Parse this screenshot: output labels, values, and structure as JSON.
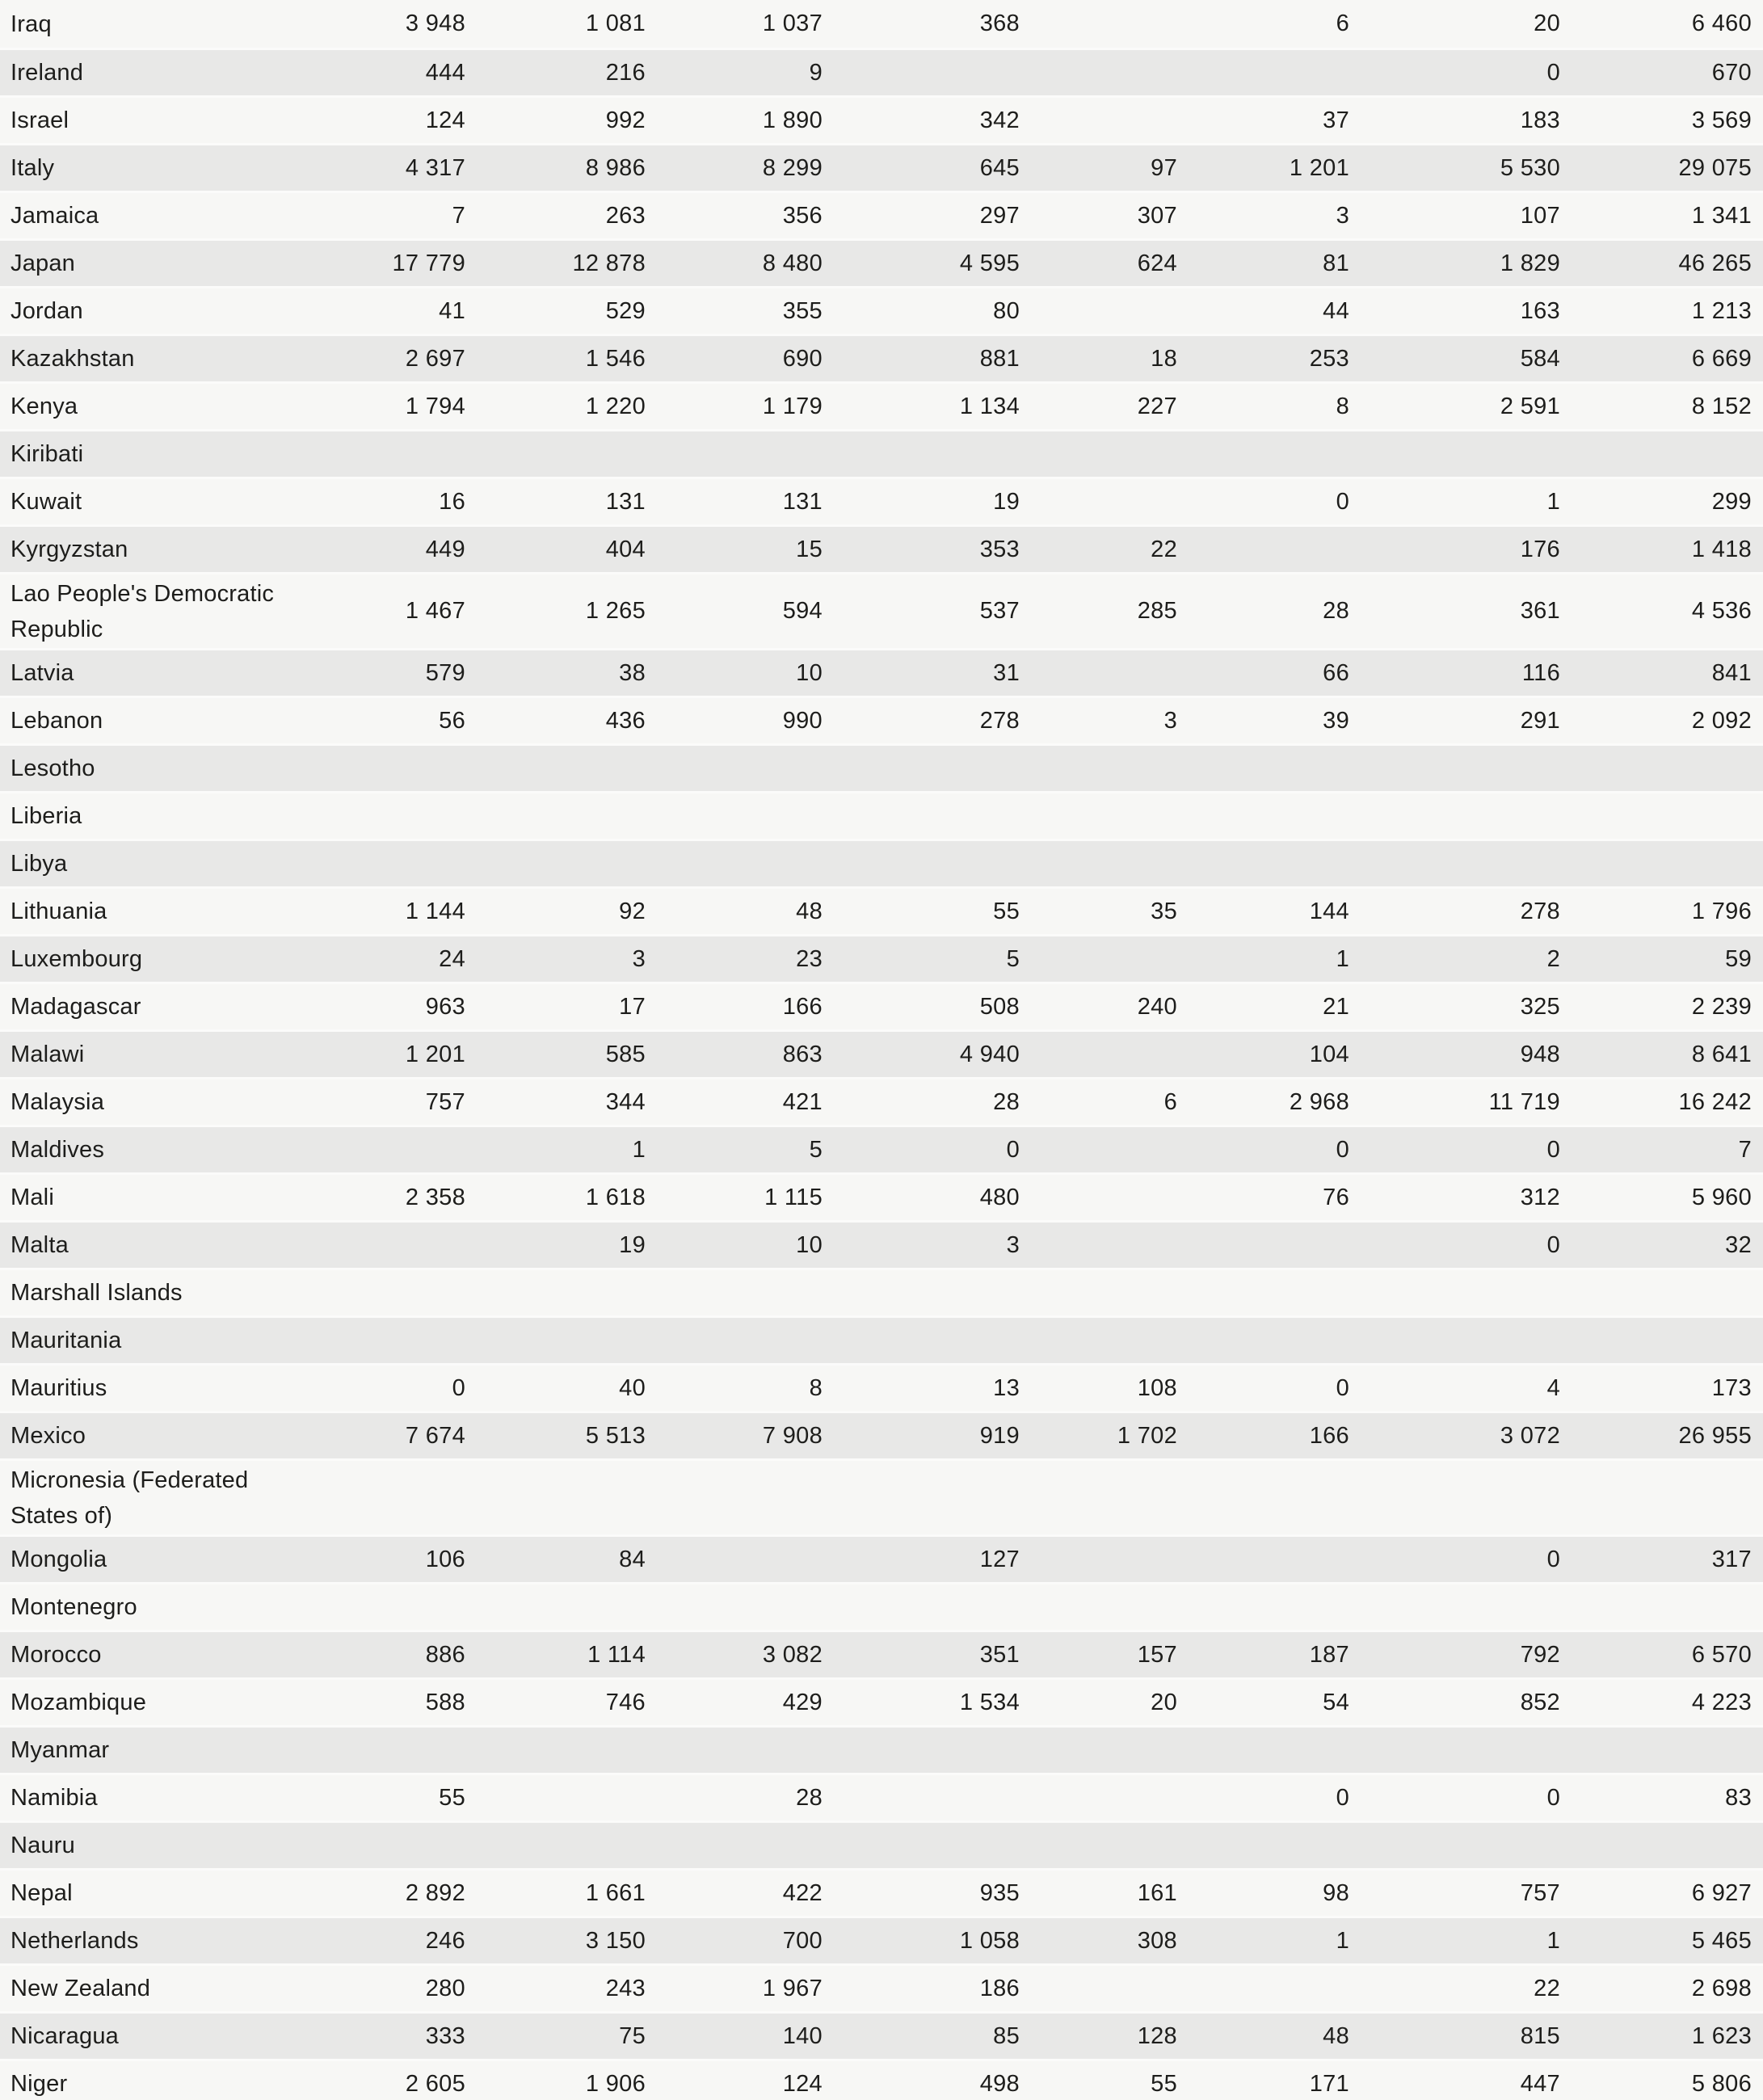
{
  "colors": {
    "row_light": "#f7f7f5",
    "row_dark": "#e8e8e7",
    "separator": "#fbfbfa",
    "text": "#1d1d1b"
  },
  "table": {
    "columns_visible_headers": [],
    "rows": [
      {
        "country": "Iraq",
        "tall": false,
        "values": [
          "3 948",
          "1 081",
          "1 037",
          "368",
          "",
          "6",
          "20",
          "6 460"
        ]
      },
      {
        "country": "Ireland",
        "tall": false,
        "values": [
          "444",
          "216",
          "9",
          "",
          "",
          "",
          "0",
          "670"
        ]
      },
      {
        "country": "Israel",
        "tall": false,
        "values": [
          "124",
          "992",
          "1 890",
          "342",
          "",
          "37",
          "183",
          "3 569"
        ]
      },
      {
        "country": "Italy",
        "tall": false,
        "values": [
          "4 317",
          "8 986",
          "8 299",
          "645",
          "97",
          "1 201",
          "5 530",
          "29 075"
        ]
      },
      {
        "country": "Jamaica",
        "tall": false,
        "values": [
          "7",
          "263",
          "356",
          "297",
          "307",
          "3",
          "107",
          "1 341"
        ]
      },
      {
        "country": "Japan",
        "tall": false,
        "values": [
          "17 779",
          "12 878",
          "8 480",
          "4 595",
          "624",
          "81",
          "1 829",
          "46 265"
        ]
      },
      {
        "country": "Jordan",
        "tall": false,
        "values": [
          "41",
          "529",
          "355",
          "80",
          "",
          "44",
          "163",
          "1 213"
        ]
      },
      {
        "country": "Kazakhstan",
        "tall": false,
        "values": [
          "2 697",
          "1 546",
          "690",
          "881",
          "18",
          "253",
          "584",
          "6 669"
        ]
      },
      {
        "country": "Kenya",
        "tall": false,
        "values": [
          "1 794",
          "1 220",
          "1 179",
          "1 134",
          "227",
          "8",
          "2 591",
          "8 152"
        ]
      },
      {
        "country": "Kiribati",
        "tall": false,
        "values": [
          "",
          "",
          "",
          "",
          "",
          "",
          "",
          ""
        ]
      },
      {
        "country": "Kuwait",
        "tall": false,
        "values": [
          "16",
          "131",
          "131",
          "19",
          "",
          "0",
          "1",
          "299"
        ]
      },
      {
        "country": "Kyrgyzstan",
        "tall": false,
        "values": [
          "449",
          "404",
          "15",
          "353",
          "22",
          "",
          "176",
          "1 418"
        ]
      },
      {
        "country": "Lao People's Democratic Republic",
        "tall": true,
        "values": [
          "1 467",
          "1 265",
          "594",
          "537",
          "285",
          "28",
          "361",
          "4 536"
        ]
      },
      {
        "country": "Latvia",
        "tall": false,
        "values": [
          "579",
          "38",
          "10",
          "31",
          "",
          "66",
          "116",
          "841"
        ]
      },
      {
        "country": "Lebanon",
        "tall": false,
        "values": [
          "56",
          "436",
          "990",
          "278",
          "3",
          "39",
          "291",
          "2 092"
        ]
      },
      {
        "country": "Lesotho",
        "tall": false,
        "values": [
          "",
          "",
          "",
          "",
          "",
          "",
          "",
          ""
        ]
      },
      {
        "country": "Liberia",
        "tall": false,
        "values": [
          "",
          "",
          "",
          "",
          "",
          "",
          "",
          ""
        ]
      },
      {
        "country": "Libya",
        "tall": false,
        "values": [
          "",
          "",
          "",
          "",
          "",
          "",
          "",
          ""
        ]
      },
      {
        "country": "Lithuania",
        "tall": false,
        "values": [
          "1 144",
          "92",
          "48",
          "55",
          "35",
          "144",
          "278",
          "1 796"
        ]
      },
      {
        "country": "Luxembourg",
        "tall": false,
        "values": [
          "24",
          "3",
          "23",
          "5",
          "",
          "1",
          "2",
          "59"
        ]
      },
      {
        "country": "Madagascar",
        "tall": false,
        "values": [
          "963",
          "17",
          "166",
          "508",
          "240",
          "21",
          "325",
          "2 239"
        ]
      },
      {
        "country": "Malawi",
        "tall": false,
        "values": [
          "1 201",
          "585",
          "863",
          "4 940",
          "",
          "104",
          "948",
          "8 641"
        ]
      },
      {
        "country": "Malaysia",
        "tall": false,
        "values": [
          "757",
          "344",
          "421",
          "28",
          "6",
          "2 968",
          "11 719",
          "16 242"
        ]
      },
      {
        "country": "Maldives",
        "tall": false,
        "values": [
          "",
          "1",
          "5",
          "0",
          "",
          "0",
          "0",
          "7"
        ]
      },
      {
        "country": "Mali",
        "tall": false,
        "values": [
          "2 358",
          "1 618",
          "1 115",
          "480",
          "",
          "76",
          "312",
          "5 960"
        ]
      },
      {
        "country": "Malta",
        "tall": false,
        "values": [
          "",
          "19",
          "10",
          "3",
          "",
          "",
          "0",
          "32"
        ]
      },
      {
        "country": "Marshall Islands",
        "tall": false,
        "values": [
          "",
          "",
          "",
          "",
          "",
          "",
          "",
          ""
        ]
      },
      {
        "country": "Mauritania",
        "tall": false,
        "values": [
          "",
          "",
          "",
          "",
          "",
          "",
          "",
          ""
        ]
      },
      {
        "country": "Mauritius",
        "tall": false,
        "values": [
          "0",
          "40",
          "8",
          "13",
          "108",
          "0",
          "4",
          "173"
        ]
      },
      {
        "country": "Mexico",
        "tall": false,
        "values": [
          "7 674",
          "5 513",
          "7 908",
          "919",
          "1 702",
          "166",
          "3 072",
          "26 955"
        ]
      },
      {
        "country": "Micronesia (Federated States of)",
        "tall": true,
        "values": [
          "",
          "",
          "",
          "",
          "",
          "",
          "",
          ""
        ]
      },
      {
        "country": "Mongolia",
        "tall": false,
        "values": [
          "106",
          "84",
          "",
          "127",
          "",
          "",
          "0",
          "317"
        ]
      },
      {
        "country": "Montenegro",
        "tall": false,
        "values": [
          "",
          "",
          "",
          "",
          "",
          "",
          "",
          ""
        ]
      },
      {
        "country": "Morocco",
        "tall": false,
        "values": [
          "886",
          "1 114",
          "3 082",
          "351",
          "157",
          "187",
          "792",
          "6 570"
        ]
      },
      {
        "country": "Mozambique",
        "tall": false,
        "values": [
          "588",
          "746",
          "429",
          "1 534",
          "20",
          "54",
          "852",
          "4 223"
        ]
      },
      {
        "country": "Myanmar",
        "tall": false,
        "values": [
          "",
          "",
          "",
          "",
          "",
          "",
          "",
          ""
        ]
      },
      {
        "country": "Namibia",
        "tall": false,
        "values": [
          "55",
          "",
          "28",
          "",
          "",
          "0",
          "0",
          "83"
        ]
      },
      {
        "country": "Nauru",
        "tall": false,
        "values": [
          "",
          "",
          "",
          "",
          "",
          "",
          "",
          ""
        ]
      },
      {
        "country": "Nepal",
        "tall": false,
        "values": [
          "2 892",
          "1 661",
          "422",
          "935",
          "161",
          "98",
          "757",
          "6 927"
        ]
      },
      {
        "country": "Netherlands",
        "tall": false,
        "values": [
          "246",
          "3 150",
          "700",
          "1 058",
          "308",
          "1",
          "1",
          "5 465"
        ]
      },
      {
        "country": "New Zealand",
        "tall": false,
        "values": [
          "280",
          "243",
          "1 967",
          "186",
          "",
          "",
          "22",
          "2 698"
        ]
      },
      {
        "country": "Nicaragua",
        "tall": false,
        "values": [
          "333",
          "75",
          "140",
          "85",
          "128",
          "48",
          "815",
          "1 623"
        ]
      },
      {
        "country": "Niger",
        "tall": false,
        "values": [
          "2 605",
          "1 906",
          "124",
          "498",
          "55",
          "171",
          "447",
          "5 806"
        ]
      }
    ]
  }
}
